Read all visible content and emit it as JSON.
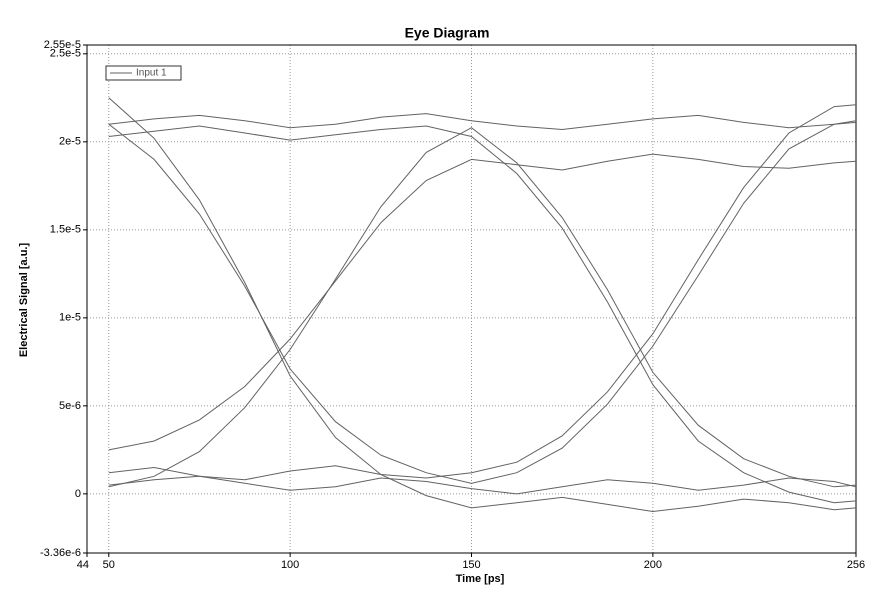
{
  "chart_data": {
    "type": "eye",
    "title": "Eye Diagram",
    "xlabel": "Time [ps]",
    "ylabel": "Electrical Signal [a.u.]",
    "x": [
      50,
      62.5,
      75,
      87.5,
      100,
      112.5,
      125,
      137.5,
      150,
      162.5,
      175,
      187.5,
      200,
      212.5,
      225,
      237.5,
      250,
      256
    ],
    "series": [
      {
        "name": "Input 1",
        "color": "#626262",
        "traces": [
          [
            2.1e-05,
            2.13e-05,
            2.15e-05,
            2.12e-05,
            2.08e-05,
            2.1e-05,
            2.14e-05,
            2.16e-05,
            2.12e-05,
            2.09e-05,
            2.07e-05,
            2.1e-05,
            2.13e-05,
            2.15e-05,
            2.11e-05,
            2.08e-05,
            2.1e-05,
            2.12e-05
          ],
          [
            5e-07,
            8e-07,
            1e-06,
            6e-07,
            2e-07,
            4e-07,
            9e-07,
            7e-07,
            3e-07,
            0,
            4e-07,
            8e-07,
            6e-07,
            2e-07,
            5e-07,
            9e-07,
            7e-07,
            4e-07
          ],
          [
            2.1e-05,
            1.9e-05,
            1.59e-05,
            1.18e-05,
            7.1e-06,
            4.1e-06,
            2.2e-06,
            1.2e-06,
            6e-07,
            1.2e-06,
            2.6e-06,
            5.1e-06,
            8.4e-06,
            1.24e-05,
            1.65e-05,
            1.96e-05,
            2.1e-05,
            2.11e-05
          ],
          [
            4e-07,
            1e-06,
            2.4e-06,
            4.9e-06,
            8.2e-06,
            1.22e-05,
            1.63e-05,
            1.94e-05,
            2.08e-05,
            1.88e-05,
            1.57e-05,
            1.16e-05,
            6.9e-06,
            3.9e-06,
            2e-06,
            1e-06,
            4e-07,
            5e-07
          ],
          [
            2.03e-05,
            2.06e-05,
            2.09e-05,
            2.05e-05,
            2.01e-05,
            2.04e-05,
            2.07e-05,
            2.09e-05,
            2.03e-05,
            1.82e-05,
            1.51e-05,
            1.09e-05,
            6.2e-06,
            3e-06,
            1.2e-06,
            1e-07,
            -5e-07,
            -4e-07
          ],
          [
            1.2e-06,
            1.5e-06,
            1e-06,
            8e-07,
            1.3e-06,
            1.6e-06,
            1.1e-06,
            9e-07,
            1.2e-06,
            1.8e-06,
            3.3e-06,
            5.8e-06,
            9.1e-06,
            1.33e-05,
            1.74e-05,
            2.05e-05,
            2.2e-05,
            2.21e-05
          ],
          [
            2.25e-05,
            2.02e-05,
            1.67e-05,
            1.2e-05,
            6.7e-06,
            3.2e-06,
            1.1e-06,
            -1e-07,
            -8e-07,
            -5e-07,
            -2e-07,
            -6e-07,
            -1e-06,
            -7e-07,
            -3e-07,
            -5e-07,
            -9e-07,
            -8e-07
          ],
          [
            2.5e-06,
            3e-06,
            4.2e-06,
            6.1e-06,
            8.8e-06,
            1.21e-05,
            1.54e-05,
            1.78e-05,
            1.9e-05,
            1.87e-05,
            1.84e-05,
            1.89e-05,
            1.93e-05,
            1.9e-05,
            1.86e-05,
            1.85e-05,
            1.88e-05,
            1.89e-05
          ]
        ]
      }
    ],
    "xlim": [
      44,
      256
    ],
    "xticks": [
      44,
      50,
      100,
      150,
      200,
      256
    ],
    "ylim": [
      -3.36e-06,
      2.55e-05
    ],
    "yticks": [
      {
        "value": -3.36e-06,
        "label": "-3.36e-6"
      },
      0,
      {
        "value": 5e-06,
        "label": "5e-6"
      },
      {
        "value": 1e-05,
        "label": "1e-5"
      },
      {
        "value": 1.5e-05,
        "label": "1.5e-5"
      },
      {
        "value": 2e-05,
        "label": "2e-5"
      },
      {
        "value": 2.5e-05,
        "label": "2.5e-5"
      },
      {
        "value": 2.55e-05,
        "label": "2.55e-5"
      }
    ],
    "grid": true,
    "legend": "upper left"
  }
}
